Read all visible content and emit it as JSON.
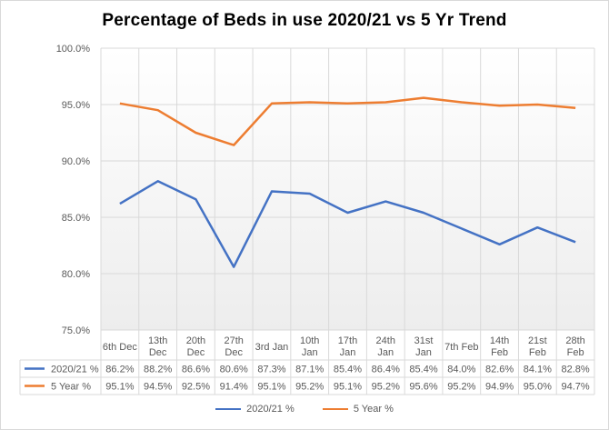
{
  "colors": {
    "series1": "#4472c4",
    "series2": "#ed7d31",
    "grid": "#d9d9d9",
    "plot_bg_bottom": "#ededed"
  },
  "chart_data": {
    "type": "line",
    "title": "Percentage of Beds in use 2020/21 vs 5 Yr Trend",
    "categories": [
      [
        "6th Dec"
      ],
      [
        "13th",
        "Dec"
      ],
      [
        "20th",
        "Dec"
      ],
      [
        "27th",
        "Dec"
      ],
      [
        "3rd Jan"
      ],
      [
        "10th",
        "Jan"
      ],
      [
        "17th",
        "Jan"
      ],
      [
        "24th",
        "Jan"
      ],
      [
        "31st",
        "Jan"
      ],
      [
        "7th Feb"
      ],
      [
        "14th",
        "Feb"
      ],
      [
        "21st",
        "Feb"
      ],
      [
        "28th",
        "Feb"
      ]
    ],
    "ylim": [
      75,
      100
    ],
    "yticks": [
      "75.0%",
      "80.0%",
      "85.0%",
      "90.0%",
      "95.0%",
      "100.0%"
    ],
    "series": [
      {
        "name": "2020/21 %",
        "values": [
          86.2,
          88.2,
          86.6,
          80.6,
          87.3,
          87.1,
          85.4,
          86.4,
          85.4,
          84.0,
          82.6,
          84.1,
          82.8
        ],
        "labels": [
          "86.2%",
          "88.2%",
          "86.6%",
          "80.6%",
          "87.3%",
          "87.1%",
          "85.4%",
          "86.4%",
          "85.4%",
          "84.0%",
          "82.6%",
          "84.1%",
          "82.8%"
        ]
      },
      {
        "name": "5 Year %",
        "values": [
          95.1,
          94.5,
          92.5,
          91.4,
          95.1,
          95.2,
          95.1,
          95.2,
          95.6,
          95.2,
          94.9,
          95.0,
          94.7
        ],
        "labels": [
          "95.1%",
          "94.5%",
          "92.5%",
          "91.4%",
          "95.1%",
          "95.2%",
          "95.1%",
          "95.2%",
          "95.6%",
          "95.2%",
          "94.9%",
          "95.0%",
          "94.7%"
        ]
      }
    ],
    "grid": true,
    "legend": "bottom",
    "data_table": true
  }
}
